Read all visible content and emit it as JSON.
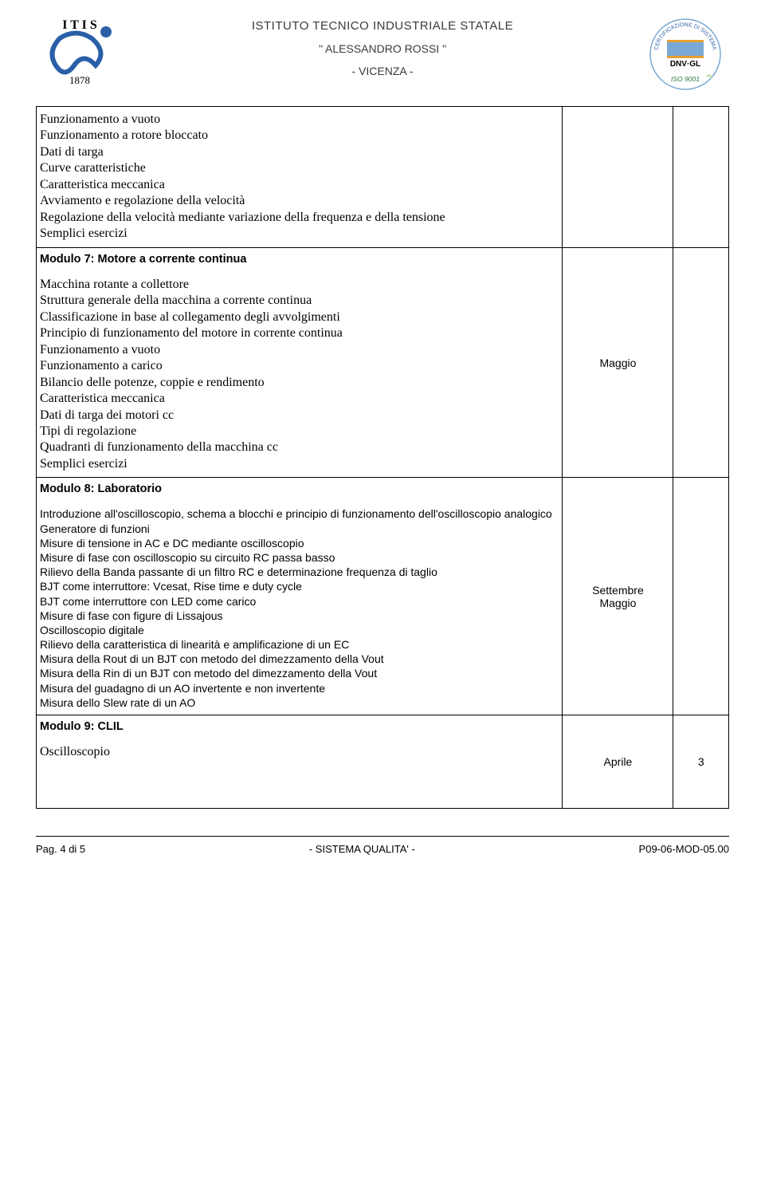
{
  "header": {
    "institute": "ISTITUTO TECNICO INDUSTRIALE STATALE",
    "name": "\" ALESSANDRO ROSSI \"",
    "city": "- VICENZA -",
    "logo_left_top": "I T I S",
    "logo_left_year": "1878",
    "cert_text": "DNV·GL",
    "cert_iso": "ISO 9001",
    "cert_ring": "CERTIFICAZIONE DI SISTEMA QUALITÀ"
  },
  "rows": [
    {
      "title": "",
      "title_bold": false,
      "font": "serif",
      "lines": [
        "Funzionamento a vuoto",
        "Funzionamento a rotore bloccato",
        "Dati di targa",
        "Curve caratteristiche",
        "Caratteristica meccanica",
        "Avviamento e regolazione della velocità",
        "Regolazione della velocità mediante variazione della frequenza e della tensione",
        "Semplici esercizi"
      ],
      "month": "",
      "num": ""
    },
    {
      "title": "Modulo 7: Motore a corrente continua",
      "title_bold": true,
      "font": "serif",
      "lines": [
        "Macchina rotante a collettore",
        "Struttura generale della macchina a corrente continua",
        "Classificazione in base al collegamento degli avvolgimenti",
        "Principio di funzionamento del motore in corrente continua",
        "Funzionamento a vuoto",
        "Funzionamento a carico",
        "Bilancio delle potenze, coppie e rendimento",
        "Caratteristica meccanica",
        "Dati di targa dei motori cc",
        "Tipi di regolazione",
        "Quadranti di funzionamento della macchina cc",
        "Semplici esercizi"
      ],
      "month": "Maggio",
      "num": ""
    },
    {
      "title": "Modulo 8: Laboratorio",
      "title_bold": true,
      "font": "sans",
      "lines": [
        "Introduzione all'oscilloscopio, schema a blocchi e principio di funzionamento dell'oscilloscopio analogico",
        "Generatore di funzioni",
        "Misure di tensione in AC e DC mediante oscilloscopio",
        "Misure di fase con oscilloscopio su circuito RC passa basso",
        "Rilievo della Banda passante di un filtro RC e determinazione frequenza di taglio",
        "BJT come interruttore: Vcesat, Rise time e duty cycle",
        "BJT come interruttore con LED come carico",
        "Misure di fase con figure di Lissajous",
        "Oscilloscopio digitale",
        "Rilievo della caratteristica di linearità e amplificazione di un EC",
        "Misura della Rout di un BJT con metodo del dimezzamento della Vout",
        "Misura della Rin di un BJT con metodo del dimezzamento della Vout",
        "Misura del guadagno di un AO invertente e non invertente",
        "Misura dello Slew rate di un AO"
      ],
      "month": "Settembre\nMaggio",
      "num": ""
    },
    {
      "title": "Modulo 9: CLIL",
      "title_bold": true,
      "font": "serif",
      "lines": [
        "Oscilloscopio"
      ],
      "month": "Aprile",
      "num": "3",
      "extra_bottom_pad": true
    }
  ],
  "footer": {
    "left": "Pag. 4 di 5",
    "center": "- SISTEMA QUALITA' -",
    "right": "P09-06-MOD-05.00"
  },
  "colors": {
    "text": "#000000",
    "header_text": "#3a3a3a",
    "border": "#000000",
    "logo_blue": "#2a5fa8",
    "cert_blue": "#7aa9d6",
    "cert_green": "#b0d89a"
  }
}
